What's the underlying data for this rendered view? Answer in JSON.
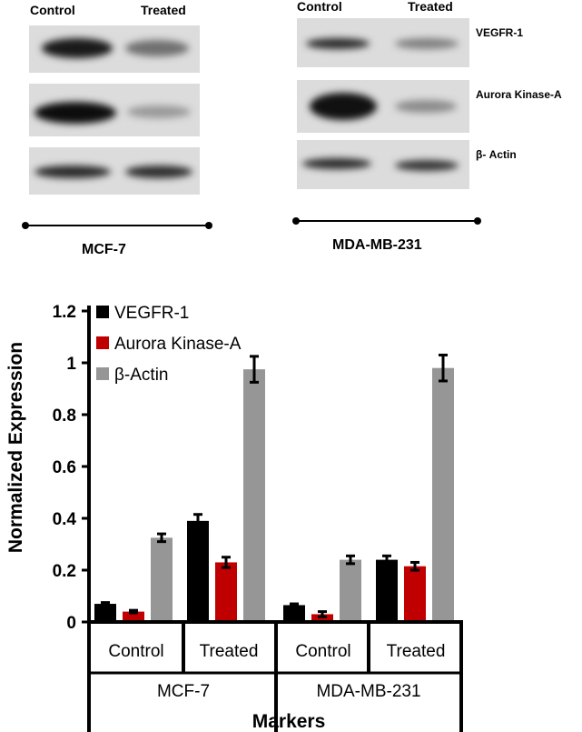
{
  "blots": {
    "left": {
      "header_control": "Control",
      "header_treated": "Treated",
      "cell_line": "MCF-7"
    },
    "right": {
      "header_control": "Control",
      "header_treated": "Treated",
      "cell_line": "MDA-MB-231",
      "row_labels": [
        "VEGFR-1",
        "Aurora Kinase-A",
        "β- Actin"
      ]
    }
  },
  "chart_data": {
    "type": "bar",
    "ylabel": "Normalized Expression",
    "xlabel": "Markers",
    "ylim": [
      0,
      1.2
    ],
    "yticks": [
      "0",
      "0.2",
      "0.4",
      "0.6",
      "0.8",
      "1",
      "1.2"
    ],
    "groups": [
      {
        "name": "MCF-7",
        "subgroups": [
          "Control",
          "Treated"
        ]
      },
      {
        "name": "MDA-MB-231",
        "subgroups": [
          "Control",
          "Treated"
        ]
      }
    ],
    "categories": [
      "MCF-7 Control",
      "MCF-7 Treated",
      "MDA-MB-231 Control",
      "MDA-MB-231 Treated"
    ],
    "legend_position": "top-left",
    "series": [
      {
        "name": "VEGFR-1",
        "color": "#000000",
        "values": [
          0.07,
          0.39,
          0.065,
          0.24
        ],
        "errors": [
          0.005,
          0.025,
          0.005,
          0.015
        ]
      },
      {
        "name": "Aurora Kinase-A",
        "color": "#c00000",
        "values": [
          0.04,
          0.23,
          0.03,
          0.215
        ],
        "errors": [
          0.005,
          0.02,
          0.01,
          0.015
        ]
      },
      {
        "name": "β-Actin",
        "color": "#969696",
        "values": [
          0.325,
          0.975,
          0.24,
          0.98
        ],
        "errors": [
          0.015,
          0.05,
          0.015,
          0.05
        ]
      }
    ]
  }
}
